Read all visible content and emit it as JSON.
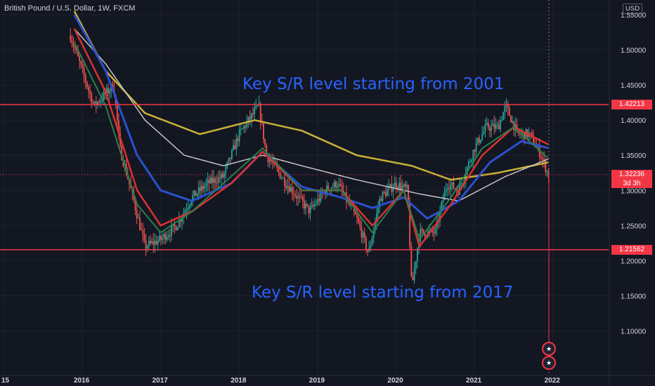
{
  "header": {
    "symbol_title": "British Pound / U.S. Dollar, 1W, FXCM",
    "currency": "USD"
  },
  "annotations": {
    "top": "Key S/R level starting from 2001",
    "bottom": "Key S/R level starting from 2017"
  },
  "levels": {
    "upper": "1.42213",
    "lower": "1.21562",
    "last": "1.32236",
    "countdown": "3d 3h"
  },
  "icons": {
    "flag_top": "uk-flag-icon",
    "flag_bottom": "us-flag-icon"
  },
  "colors": {
    "background": "#131722",
    "up": "#26a69a",
    "down": "#ef5350",
    "level": "#f23645",
    "ema_yellow": "#c9b037",
    "ema_white": "#c4c4c4",
    "ema_blue": "#2b50d0",
    "ema_red": "#d8322f",
    "ema_green": "#2e7d4a",
    "annotation": "#2962ff"
  },
  "chart_data": {
    "type": "candlestick",
    "title": "British Pound / U.S. Dollar, 1W, FXCM",
    "x_tick_labels": [
      "15",
      "2016",
      "2017",
      "2018",
      "2019",
      "2020",
      "2021",
      "2022"
    ],
    "y_tick_labels": [
      "1.55000",
      "1.50000",
      "1.45000",
      "1.40000",
      "1.35000",
      "1.30000",
      "1.25000",
      "1.20000",
      "1.15000",
      "1.10000"
    ],
    "ylim": [
      1.1,
      1.57
    ],
    "horizontal_levels": [
      1.42213,
      1.21562
    ],
    "last_price": 1.32236,
    "price_path": [
      [
        2015.85,
        1.52
      ],
      [
        2016.0,
        1.47
      ],
      [
        2016.15,
        1.42
      ],
      [
        2016.4,
        1.45
      ],
      [
        2016.48,
        1.36
      ],
      [
        2016.6,
        1.31
      ],
      [
        2016.8,
        1.22
      ],
      [
        2017.0,
        1.23
      ],
      [
        2017.2,
        1.25
      ],
      [
        2017.4,
        1.29
      ],
      [
        2017.6,
        1.31
      ],
      [
        2017.8,
        1.32
      ],
      [
        2018.0,
        1.38
      ],
      [
        2018.25,
        1.42
      ],
      [
        2018.35,
        1.35
      ],
      [
        2018.6,
        1.31
      ],
      [
        2018.9,
        1.27
      ],
      [
        2019.1,
        1.3
      ],
      [
        2019.25,
        1.31
      ],
      [
        2019.5,
        1.26
      ],
      [
        2019.65,
        1.21
      ],
      [
        2019.8,
        1.29
      ],
      [
        2020.0,
        1.31
      ],
      [
        2020.15,
        1.3
      ],
      [
        2020.2,
        1.16
      ],
      [
        2020.3,
        1.24
      ],
      [
        2020.5,
        1.24
      ],
      [
        2020.65,
        1.31
      ],
      [
        2020.8,
        1.3
      ],
      [
        2021.0,
        1.36
      ],
      [
        2021.15,
        1.39
      ],
      [
        2021.3,
        1.39
      ],
      [
        2021.4,
        1.42
      ],
      [
        2021.55,
        1.38
      ],
      [
        2021.7,
        1.38
      ],
      [
        2021.85,
        1.35
      ],
      [
        2021.95,
        1.32
      ]
    ],
    "series": [
      {
        "values": [
          [
            2015.9,
            1.555
          ],
          [
            2016.3,
            1.47
          ],
          [
            2016.8,
            1.41
          ],
          [
            2017.5,
            1.38
          ],
          [
            2018.2,
            1.4
          ],
          [
            2018.8,
            1.385
          ],
          [
            2019.5,
            1.35
          ],
          [
            2020.2,
            1.335
          ],
          [
            2020.7,
            1.315
          ],
          [
            2021.3,
            1.325
          ],
          [
            2021.95,
            1.34
          ]
        ]
      },
      {
        "values": [
          [
            2015.9,
            1.53
          ],
          [
            2016.3,
            1.48
          ],
          [
            2016.8,
            1.4
          ],
          [
            2017.3,
            1.35
          ],
          [
            2017.8,
            1.335
          ],
          [
            2018.3,
            1.35
          ],
          [
            2018.8,
            1.335
          ],
          [
            2019.5,
            1.315
          ],
          [
            2020.3,
            1.295
          ],
          [
            2020.8,
            1.285
          ],
          [
            2021.4,
            1.32
          ],
          [
            2021.95,
            1.345
          ]
        ]
      },
      {
        "values": [
          [
            2015.9,
            1.55
          ],
          [
            2016.3,
            1.47
          ],
          [
            2016.7,
            1.35
          ],
          [
            2017.0,
            1.3
          ],
          [
            2017.4,
            1.285
          ],
          [
            2017.9,
            1.31
          ],
          [
            2018.3,
            1.355
          ],
          [
            2018.8,
            1.305
          ],
          [
            2019.3,
            1.29
          ],
          [
            2019.7,
            1.275
          ],
          [
            2020.1,
            1.29
          ],
          [
            2020.4,
            1.26
          ],
          [
            2020.8,
            1.285
          ],
          [
            2021.2,
            1.34
          ],
          [
            2021.6,
            1.37
          ],
          [
            2021.95,
            1.36
          ]
        ]
      },
      {
        "values": [
          [
            2015.9,
            1.53
          ],
          [
            2016.3,
            1.44
          ],
          [
            2016.7,
            1.3
          ],
          [
            2017.0,
            1.25
          ],
          [
            2017.4,
            1.27
          ],
          [
            2017.9,
            1.31
          ],
          [
            2018.3,
            1.355
          ],
          [
            2018.8,
            1.3
          ],
          [
            2019.3,
            1.3
          ],
          [
            2019.7,
            1.25
          ],
          [
            2020.1,
            1.3
          ],
          [
            2020.3,
            1.22
          ],
          [
            2020.7,
            1.28
          ],
          [
            2021.1,
            1.35
          ],
          [
            2021.5,
            1.39
          ],
          [
            2021.95,
            1.365
          ]
        ]
      },
      {
        "values": [
          [
            2015.9,
            1.51
          ],
          [
            2016.3,
            1.42
          ],
          [
            2016.7,
            1.28
          ],
          [
            2017.0,
            1.24
          ],
          [
            2017.4,
            1.27
          ],
          [
            2017.9,
            1.32
          ],
          [
            2018.3,
            1.36
          ],
          [
            2018.8,
            1.3
          ],
          [
            2019.3,
            1.3
          ],
          [
            2019.7,
            1.24
          ],
          [
            2020.1,
            1.3
          ],
          [
            2020.3,
            1.23
          ],
          [
            2020.7,
            1.29
          ],
          [
            2021.1,
            1.36
          ],
          [
            2021.5,
            1.39
          ],
          [
            2021.95,
            1.345
          ]
        ]
      }
    ]
  }
}
